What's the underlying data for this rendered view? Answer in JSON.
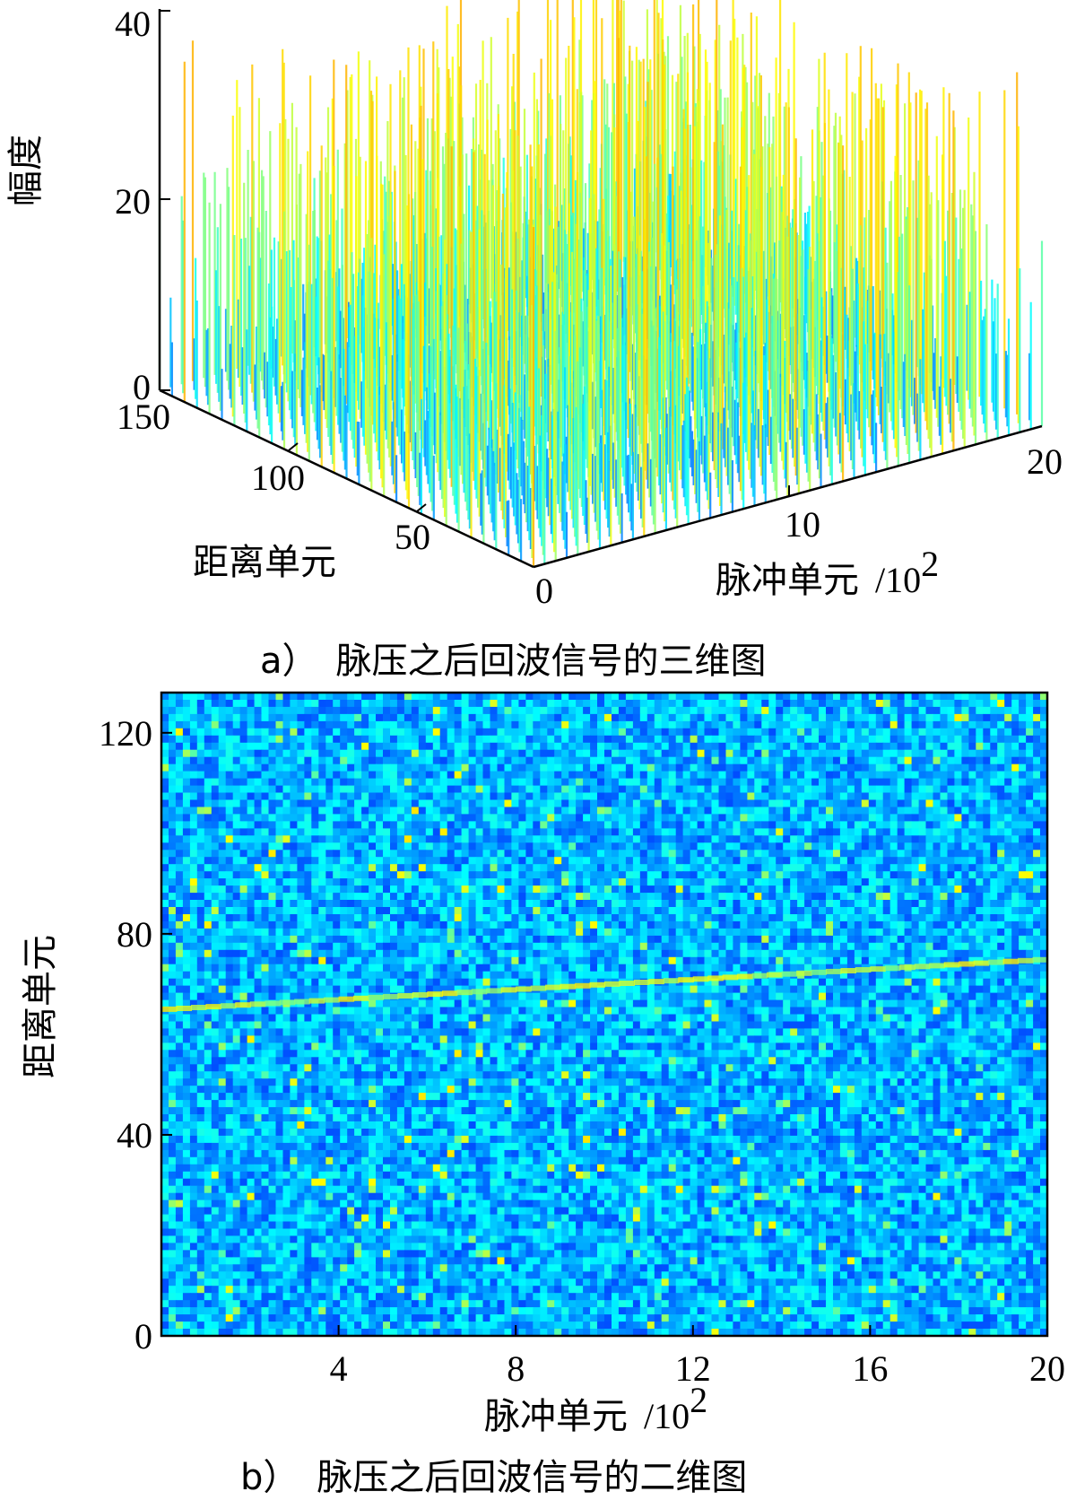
{
  "chart_data": [
    {
      "type": "surface3d",
      "caption": "a）　脉压之后回波信号的三维图",
      "zlabel": "幅度",
      "ylabel": "距离单元",
      "xlabel": "脉冲单元",
      "xlabel_unit": "/10",
      "xlabel_exp": "2",
      "x_ticks": [
        0,
        10,
        20
      ],
      "y_ticks": [
        50,
        100,
        150
      ],
      "z_ticks": [
        0,
        20,
        40
      ],
      "xlim": [
        0,
        20
      ],
      "ylim": [
        0,
        150
      ],
      "zlim": [
        0,
        40
      ],
      "noise_amplitude_range": [
        5,
        38
      ],
      "colormap": "jet",
      "grid": false
    },
    {
      "type": "heatmap",
      "caption": "b）　脉压之后回波信号的二维图",
      "xlabel": "脉冲单元",
      "xlabel_unit": "/10",
      "xlabel_exp": "2",
      "ylabel": "距离单元",
      "x_ticks": [
        4,
        8,
        12,
        16,
        20
      ],
      "y_ticks": [
        0,
        40,
        80,
        120
      ],
      "xlim": [
        0,
        20
      ],
      "ylim": [
        0,
        128
      ],
      "colormap": "jet",
      "target_track": {
        "x": [
          0,
          20
        ],
        "y": [
          65,
          75
        ]
      },
      "grid": false
    }
  ]
}
